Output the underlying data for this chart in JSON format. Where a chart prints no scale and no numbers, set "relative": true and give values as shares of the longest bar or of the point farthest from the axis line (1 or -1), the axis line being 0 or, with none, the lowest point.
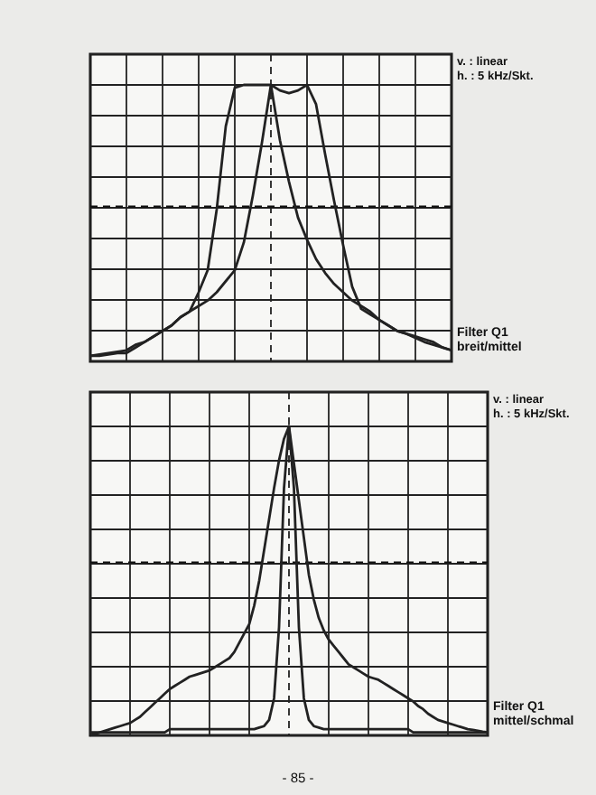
{
  "chart_data": [
    {
      "type": "line",
      "relative": true,
      "grid": true,
      "marker": "none",
      "line_style": "solid",
      "categories": [
        null,
        null,
        null,
        null,
        null,
        null,
        null,
        null,
        null,
        null,
        null,
        null,
        null,
        null,
        null,
        null,
        null,
        null,
        null,
        null,
        null,
        null,
        null,
        null,
        null,
        null,
        null,
        null,
        null,
        null,
        null,
        null,
        null,
        null,
        null,
        null,
        null,
        null,
        null,
        null,
        null
      ],
      "series": [
        {
          "color": "#222222",
          "values": [
            0.02,
            0.025,
            0.03,
            0.035,
            0.04,
            0.06,
            0.07,
            0.09,
            0.11,
            0.13,
            0.16,
            0.18,
            0.25,
            0.33,
            0.55,
            0.85,
            0.99,
            1,
            1,
            1,
            1,
            0.98,
            0.97,
            0.98,
            1,
            0.93,
            0.75,
            0.58,
            0.42,
            0.27,
            0.19,
            0.17,
            0.15,
            0.13,
            0.11,
            0.1,
            0.085,
            0.07,
            0.06,
            0.05,
            0.04
          ]
        },
        {
          "color": "#222222",
          "values": [
            0.02,
            0.02,
            0.025,
            0.03,
            0.03,
            0.05,
            0.07,
            0.09,
            0.11,
            0.13,
            0.16,
            0.18,
            0.2,
            0.22,
            0.25,
            0.29,
            0.33,
            0.43,
            0.6,
            0.79,
            1,
            0.8,
            0.65,
            0.52,
            0.44,
            0.37,
            0.32,
            0.28,
            0.25,
            0.22,
            0.2,
            0.18,
            0.15,
            0.13,
            0.11,
            0.1,
            0.09,
            0.08,
            0.07,
            0.05,
            0.04
          ]
        }
      ],
      "ref_lines": [
        {
          "axis": "y",
          "value": 0.56,
          "line_style": "dashed"
        }
      ],
      "annotations": [
        "v. : linear",
        "h. : 5 kHz/Skt.",
        "Filter Q1",
        "breit/mittel"
      ]
    },
    {
      "type": "line",
      "relative": true,
      "grid": true,
      "marker": "none",
      "line_style": "solid",
      "categories": [
        null,
        null,
        null,
        null,
        null,
        null,
        null,
        null,
        null,
        null,
        null,
        null,
        null,
        null,
        null,
        null,
        null,
        null,
        null,
        null,
        null,
        null,
        null,
        null,
        null,
        null,
        null,
        null,
        null,
        null,
        null,
        null,
        null,
        null,
        null,
        null,
        null,
        null,
        null,
        null,
        null,
        null,
        null,
        null,
        null,
        null,
        null,
        null,
        null,
        null,
        null,
        null,
        null,
        null,
        null,
        null,
        null,
        null,
        null,
        null,
        null,
        null,
        null,
        null,
        null,
        null,
        null,
        null,
        null,
        null,
        null,
        null,
        null,
        null,
        null,
        null,
        null,
        null,
        null,
        null,
        null
      ],
      "series": [
        {
          "color": "#222222",
          "values": [
            0.01,
            0.01,
            0.01,
            0.01,
            0.01,
            0.01,
            0.01,
            0.01,
            0.01,
            0.01,
            0.01,
            0.01,
            0.01,
            0.01,
            0.01,
            0.01,
            0.02,
            0.02,
            0.02,
            0.02,
            0.02,
            0.02,
            0.02,
            0.02,
            0.02,
            0.02,
            0.02,
            0.02,
            0.02,
            0.02,
            0.02,
            0.02,
            0.02,
            0.02,
            0.025,
            0.03,
            0.05,
            0.12,
            0.35,
            0.8,
            1,
            0.8,
            0.35,
            0.12,
            0.05,
            0.03,
            0.025,
            0.02,
            0.02,
            0.02,
            0.02,
            0.02,
            0.02,
            0.02,
            0.02,
            0.02,
            0.02,
            0.02,
            0.02,
            0.02,
            0.02,
            0.02,
            0.02,
            0.02,
            0.02,
            0.01,
            0.01,
            0.01,
            0.01,
            0.01,
            0.01,
            0.01,
            0.01,
            0.01,
            0.01,
            0.01,
            0.01,
            0.01,
            0.01,
            0.01,
            0.01
          ]
        },
        {
          "color": "#222222",
          "values": [
            0,
            0.005,
            0.01,
            0.015,
            0.02,
            0.025,
            0.03,
            0.035,
            0.04,
            0.05,
            0.06,
            0.075,
            0.09,
            0.105,
            0.12,
            0.135,
            0.15,
            0.16,
            0.17,
            0.18,
            0.19,
            0.195,
            0.2,
            0.205,
            0.21,
            0.22,
            0.23,
            0.24,
            0.25,
            0.27,
            0.3,
            0.33,
            0.36,
            0.42,
            0.5,
            0.6,
            0.7,
            0.8,
            0.89,
            0.96,
            1,
            0.88,
            0.76,
            0.64,
            0.52,
            0.44,
            0.38,
            0.34,
            0.31,
            0.29,
            0.27,
            0.25,
            0.23,
            0.22,
            0.21,
            0.2,
            0.19,
            0.185,
            0.18,
            0.17,
            0.16,
            0.15,
            0.14,
            0.13,
            0.12,
            0.11,
            0.095,
            0.085,
            0.07,
            0.06,
            0.05,
            0.045,
            0.04,
            0.035,
            0.03,
            0.025,
            0.02,
            0.018,
            0.015,
            0.012,
            0.01
          ]
        }
      ],
      "ref_lines": [
        {
          "axis": "y",
          "value": 0.56,
          "line_style": "dashed"
        }
      ],
      "annotations": [
        "v. : linear",
        "h. : 5 kHz/Skt.",
        "Filter Q1",
        "mittel/schmal",
        "- 85 -"
      ]
    }
  ]
}
